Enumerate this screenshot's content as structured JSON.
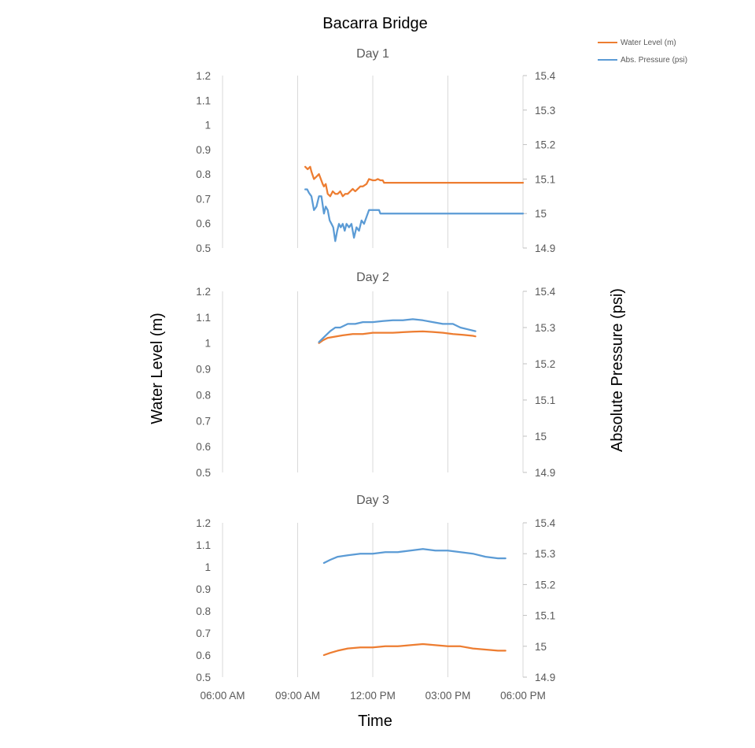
{
  "title": "Bacarra Bridge",
  "x_axis_title": "Time",
  "y_left_title": "Water Level (m)",
  "y_right_title": "Absolute Pressure (psi)",
  "legend": [
    {
      "name": "Water Level (m)",
      "color": "#ED7D31"
    },
    {
      "name": "Abs. Pressure (psi)",
      "color": "#5B9BD5"
    }
  ],
  "chart_data": [
    {
      "type": "line",
      "title": "Day 1",
      "xlabel": "Time",
      "ylabel": "Water Level (m)",
      "y2label": "Absolute Pressure (psi)",
      "xlim": [
        6,
        18
      ],
      "ylim": [
        0.5,
        1.2
      ],
      "y2lim": [
        14.9,
        15.4
      ],
      "x_gridlines": [
        9,
        12,
        15
      ],
      "y_ticks": [
        "1.2",
        "1.1",
        "1",
        "0.9",
        "0.8",
        "0.7",
        "0.6",
        "0.5"
      ],
      "y2_ticks": [
        "15.4",
        "15.3",
        "15.2",
        "15.1",
        "15",
        "14.9"
      ],
      "series": [
        {
          "name": "Water Level (m)",
          "axis": "left",
          "color": "#ED7D31",
          "x": [
            9.3,
            9.4,
            9.5,
            9.55,
            9.65,
            9.75,
            9.85,
            10.0,
            10.05,
            10.12,
            10.2,
            10.3,
            10.4,
            10.5,
            10.6,
            10.7,
            10.8,
            10.9,
            11.0,
            11.1,
            11.2,
            11.3,
            11.4,
            11.5,
            11.6,
            11.75,
            11.85,
            12.0,
            12.1,
            12.2,
            12.3,
            12.4,
            12.45,
            18.0
          ],
          "y": [
            0.83,
            0.82,
            0.83,
            0.81,
            0.78,
            0.79,
            0.8,
            0.76,
            0.75,
            0.76,
            0.72,
            0.71,
            0.73,
            0.72,
            0.72,
            0.73,
            0.71,
            0.72,
            0.72,
            0.73,
            0.74,
            0.73,
            0.74,
            0.75,
            0.75,
            0.76,
            0.78,
            0.775,
            0.775,
            0.78,
            0.775,
            0.775,
            0.765,
            0.765
          ]
        },
        {
          "name": "Abs. Pressure (psi)",
          "axis": "right",
          "color": "#5B9BD5",
          "x": [
            9.3,
            9.38,
            9.45,
            9.55,
            9.65,
            9.75,
            9.85,
            9.95,
            10.05,
            10.12,
            10.2,
            10.28,
            10.35,
            10.42,
            10.5,
            10.58,
            10.65,
            10.72,
            10.8,
            10.88,
            10.95,
            11.05,
            11.15,
            11.25,
            11.35,
            11.45,
            11.55,
            11.65,
            11.75,
            11.85,
            11.95,
            12.05,
            12.15,
            12.25,
            12.3,
            12.4,
            18.0
          ],
          "y": [
            15.07,
            15.07,
            15.06,
            15.05,
            15.01,
            15.02,
            15.05,
            15.05,
            15.0,
            15.02,
            15.01,
            14.98,
            14.97,
            14.96,
            14.92,
            14.95,
            14.97,
            14.96,
            14.97,
            14.95,
            14.97,
            14.96,
            14.97,
            14.93,
            14.96,
            14.95,
            14.98,
            14.97,
            14.99,
            15.01,
            15.01,
            15.01,
            15.01,
            15.01,
            15.0,
            15.0,
            15.0
          ]
        }
      ]
    },
    {
      "type": "line",
      "title": "Day 2",
      "xlabel": "Time",
      "ylabel": "Water Level (m)",
      "y2label": "Absolute Pressure (psi)",
      "xlim": [
        6,
        18
      ],
      "ylim": [
        0.5,
        1.2
      ],
      "y2lim": [
        14.9,
        15.4
      ],
      "x_gridlines": [
        9,
        12,
        15
      ],
      "y_ticks": [
        "1.2",
        "1.1",
        "1",
        "0.9",
        "0.8",
        "0.7",
        "0.6",
        "0.5"
      ],
      "y2_ticks": [
        "15.4",
        "15.3",
        "15.2",
        "15.1",
        "15",
        "14.9"
      ],
      "series": [
        {
          "name": "Water Level (m)",
          "axis": "left",
          "color": "#ED7D31",
          "x": [
            9.85,
            10.0,
            10.2,
            10.5,
            10.8,
            11.2,
            11.6,
            12.0,
            12.4,
            12.8,
            13.2,
            13.6,
            14.0,
            14.4,
            14.8,
            15.2,
            15.6,
            16.0,
            16.1
          ],
          "y": [
            1.0,
            1.01,
            1.02,
            1.025,
            1.03,
            1.035,
            1.035,
            1.04,
            1.04,
            1.04,
            1.042,
            1.044,
            1.045,
            1.043,
            1.04,
            1.035,
            1.032,
            1.028,
            1.026
          ]
        },
        {
          "name": "Abs. Pressure (psi)",
          "axis": "right",
          "color": "#5B9BD5",
          "x": [
            9.85,
            10.0,
            10.15,
            10.3,
            10.5,
            10.7,
            11.0,
            11.3,
            11.6,
            12.0,
            12.4,
            12.8,
            13.2,
            13.6,
            14.0,
            14.4,
            14.8,
            15.2,
            15.5,
            15.8,
            16.1
          ],
          "y": [
            15.26,
            15.27,
            15.28,
            15.29,
            15.3,
            15.3,
            15.31,
            15.31,
            15.315,
            15.315,
            15.318,
            15.32,
            15.32,
            15.323,
            15.32,
            15.315,
            15.31,
            15.31,
            15.3,
            15.295,
            15.29
          ]
        }
      ]
    },
    {
      "type": "line",
      "title": "Day 3",
      "xlabel": "Time",
      "ylabel": "Water Level (m)",
      "y2label": "Absolute Pressure (psi)",
      "xlim": [
        6,
        18
      ],
      "ylim": [
        0.5,
        1.2
      ],
      "y2lim": [
        14.9,
        15.4
      ],
      "x_ticks": [
        "06:00 AM",
        "09:00 AM",
        "12:00 PM",
        "03:00 PM",
        "06:00 PM"
      ],
      "x_gridlines": [
        9,
        12,
        15
      ],
      "y_ticks": [
        "1.2",
        "1.1",
        "1",
        "0.9",
        "0.8",
        "0.7",
        "0.6",
        "0.5"
      ],
      "y2_ticks": [
        "15.4",
        "15.3",
        "15.2",
        "15.1",
        "15",
        "14.9"
      ],
      "series": [
        {
          "name": "Water Level (m)",
          "axis": "left",
          "color": "#ED7D31",
          "x": [
            10.05,
            10.3,
            10.6,
            11.0,
            11.5,
            12.0,
            12.5,
            13.0,
            13.5,
            14.0,
            14.5,
            15.0,
            15.5,
            16.0,
            16.5,
            17.0,
            17.3
          ],
          "y": [
            0.6,
            0.61,
            0.62,
            0.63,
            0.635,
            0.635,
            0.64,
            0.64,
            0.645,
            0.65,
            0.645,
            0.64,
            0.64,
            0.63,
            0.625,
            0.62,
            0.62
          ]
        },
        {
          "name": "Abs. Pressure (psi)",
          "axis": "right",
          "color": "#5B9BD5",
          "x": [
            10.05,
            10.3,
            10.6,
            11.0,
            11.5,
            12.0,
            12.5,
            13.0,
            13.5,
            14.0,
            14.5,
            15.0,
            15.5,
            16.0,
            16.5,
            17.0,
            17.3
          ],
          "y": [
            15.27,
            15.28,
            15.29,
            15.295,
            15.3,
            15.3,
            15.305,
            15.305,
            15.31,
            15.315,
            15.31,
            15.31,
            15.305,
            15.3,
            15.29,
            15.285,
            15.285
          ]
        }
      ]
    }
  ]
}
